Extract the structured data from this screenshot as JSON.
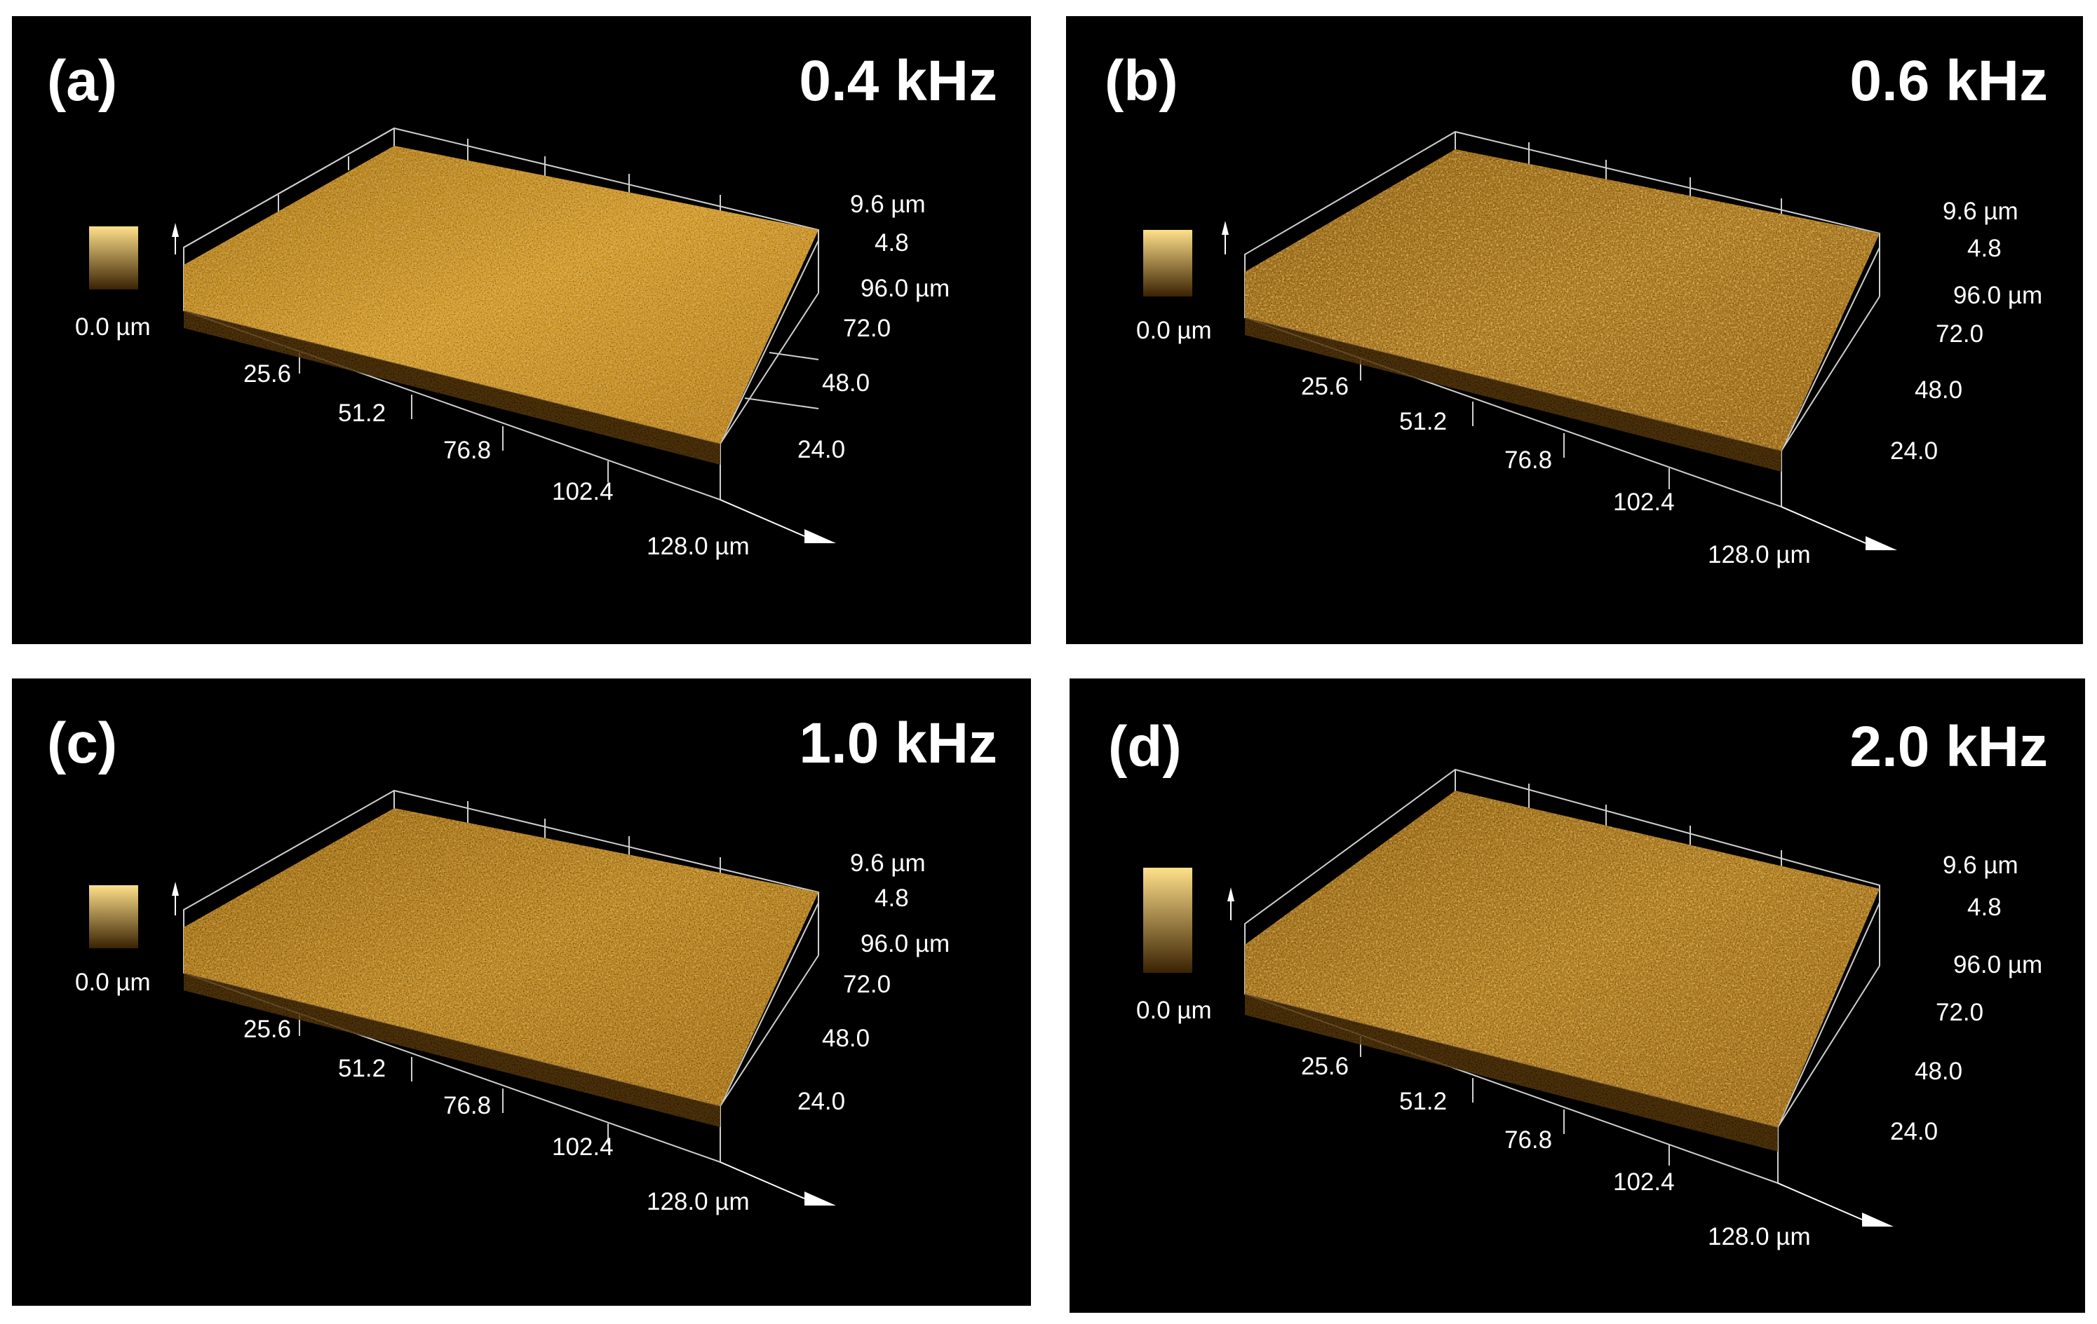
{
  "panels": [
    {
      "label": "(a)",
      "frequency": "0.4 kHz",
      "x_ticks": [
        "25.6",
        "51.2",
        "76.8",
        "102.4",
        "128.0 µm"
      ],
      "y_ticks": [
        "96.0 µm",
        "72.0",
        "48.0",
        "24.0"
      ],
      "z_ticks": [
        "9.6 µm",
        "4.8"
      ],
      "scale_label": "0.0 µm"
    },
    {
      "label": "(b)",
      "frequency": "0.6 kHz",
      "x_ticks": [
        "25.6",
        "51.2",
        "76.8",
        "102.4",
        "128.0 µm"
      ],
      "y_ticks": [
        "96.0 µm",
        "72.0",
        "48.0",
        "24.0"
      ],
      "z_ticks": [
        "9.6 µm",
        "4.8"
      ],
      "scale_label": "0.0 µm"
    },
    {
      "label": "(c)",
      "frequency": "1.0 kHz",
      "x_ticks": [
        "25.6",
        "51.2",
        "76.8",
        "102.4",
        "128.0 µm"
      ],
      "y_ticks": [
        "96.0 µm",
        "72.0",
        "48.0",
        "24.0"
      ],
      "z_ticks": [
        "9.6 µm",
        "4.8"
      ],
      "scale_label": "0.0 µm"
    },
    {
      "label": "(d)",
      "frequency": "2.0 kHz",
      "x_ticks": [
        "25.6",
        "51.2",
        "76.8",
        "102.4",
        "128.0 µm"
      ],
      "y_ticks": [
        "96.0 µm",
        "72.0",
        "48.0",
        "24.0"
      ],
      "z_ticks": [
        "9.6 µm",
        "4.8"
      ],
      "scale_label": "0.0 µm"
    }
  ],
  "colors": {
    "surface_light": "#f2c14a",
    "surface_dark": "#7a4f10",
    "background": "#000000"
  }
}
